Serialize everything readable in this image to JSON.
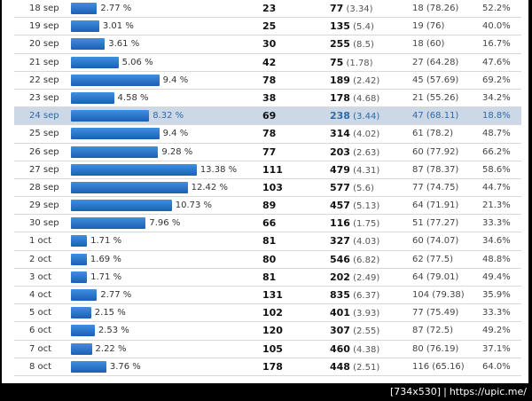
{
  "rows": [
    {
      "date": "18 sep",
      "pct": "2.77 %",
      "pctValue": 2.77,
      "c1": "23",
      "c2": "77",
      "c2sub": "(3.34)",
      "c3": "18 (78.26)",
      "c4": "52.2%",
      "highlight": false
    },
    {
      "date": "19 sep",
      "pct": "3.01 %",
      "pctValue": 3.01,
      "c1": "25",
      "c2": "135",
      "c2sub": "(5.4)",
      "c3": "19 (76)",
      "c4": "40.0%",
      "highlight": false
    },
    {
      "date": "20 sep",
      "pct": "3.61 %",
      "pctValue": 3.61,
      "c1": "30",
      "c2": "255",
      "c2sub": "(8.5)",
      "c3": "18 (60)",
      "c4": "16.7%",
      "highlight": false
    },
    {
      "date": "21 sep",
      "pct": "5.06 %",
      "pctValue": 5.06,
      "c1": "42",
      "c2": "75",
      "c2sub": "(1.78)",
      "c3": "27 (64.28)",
      "c4": "47.6%",
      "highlight": false
    },
    {
      "date": "22 sep",
      "pct": "9.4 %",
      "pctValue": 9.4,
      "c1": "78",
      "c2": "189",
      "c2sub": "(2.42)",
      "c3": "45 (57.69)",
      "c4": "69.2%",
      "highlight": false
    },
    {
      "date": "23 sep",
      "pct": "4.58 %",
      "pctValue": 4.58,
      "c1": "38",
      "c2": "178",
      "c2sub": "(4.68)",
      "c3": "21 (55.26)",
      "c4": "34.2%",
      "highlight": false
    },
    {
      "date": "24 sep",
      "pct": "8.32 %",
      "pctValue": 8.32,
      "c1": "69",
      "c2": "238",
      "c2sub": "(3.44)",
      "c3": "47 (68.11)",
      "c4": "18.8%",
      "highlight": true
    },
    {
      "date": "25 sep",
      "pct": "9.4 %",
      "pctValue": 9.4,
      "c1": "78",
      "c2": "314",
      "c2sub": "(4.02)",
      "c3": "61 (78.2)",
      "c4": "48.7%",
      "highlight": false
    },
    {
      "date": "26 sep",
      "pct": "9.28 %",
      "pctValue": 9.28,
      "c1": "77",
      "c2": "203",
      "c2sub": "(2.63)",
      "c3": "60 (77.92)",
      "c4": "66.2%",
      "highlight": false
    },
    {
      "date": "27 sep",
      "pct": "13.38 %",
      "pctValue": 13.38,
      "c1": "111",
      "c2": "479",
      "c2sub": "(4.31)",
      "c3": "87 (78.37)",
      "c4": "58.6%",
      "highlight": false
    },
    {
      "date": "28 sep",
      "pct": "12.42 %",
      "pctValue": 12.42,
      "c1": "103",
      "c2": "577",
      "c2sub": "(5.6)",
      "c3": "77 (74.75)",
      "c4": "44.7%",
      "highlight": false
    },
    {
      "date": "29 sep",
      "pct": "10.73 %",
      "pctValue": 10.73,
      "c1": "89",
      "c2": "457",
      "c2sub": "(5.13)",
      "c3": "64 (71.91)",
      "c4": "21.3%",
      "highlight": false
    },
    {
      "date": "30 sep",
      "pct": "7.96 %",
      "pctValue": 7.96,
      "c1": "66",
      "c2": "116",
      "c2sub": "(1.75)",
      "c3": "51 (77.27)",
      "c4": "33.3%",
      "highlight": false
    },
    {
      "date": "1 oct",
      "pct": "1.71 %",
      "pctValue": 1.71,
      "c1": "81",
      "c2": "327",
      "c2sub": "(4.03)",
      "c3": "60 (74.07)",
      "c4": "34.6%",
      "highlight": false
    },
    {
      "date": "2 oct",
      "pct": "1.69 %",
      "pctValue": 1.69,
      "c1": "80",
      "c2": "546",
      "c2sub": "(6.82)",
      "c3": "62 (77.5)",
      "c4": "48.8%",
      "highlight": false
    },
    {
      "date": "3 oct",
      "pct": "1.71 %",
      "pctValue": 1.71,
      "c1": "81",
      "c2": "202",
      "c2sub": "(2.49)",
      "c3": "64 (79.01)",
      "c4": "49.4%",
      "highlight": false
    },
    {
      "date": "4 oct",
      "pct": "2.77 %",
      "pctValue": 2.77,
      "c1": "131",
      "c2": "835",
      "c2sub": "(6.37)",
      "c3": "104 (79.38)",
      "c4": "35.9%",
      "highlight": false
    },
    {
      "date": "5 oct",
      "pct": "2.15 %",
      "pctValue": 2.15,
      "c1": "102",
      "c2": "401",
      "c2sub": "(3.93)",
      "c3": "77 (75.49)",
      "c4": "33.3%",
      "highlight": false
    },
    {
      "date": "6 oct",
      "pct": "2.53 %",
      "pctValue": 2.53,
      "c1": "120",
      "c2": "307",
      "c2sub": "(2.55)",
      "c3": "87 (72.5)",
      "c4": "49.2%",
      "highlight": false
    },
    {
      "date": "7 oct",
      "pct": "2.22 %",
      "pctValue": 2.22,
      "c1": "105",
      "c2": "460",
      "c2sub": "(4.38)",
      "c3": "80 (76.19)",
      "c4": "37.1%",
      "highlight": false
    },
    {
      "date": "8 oct",
      "pct": "3.76 %",
      "pctValue": 3.76,
      "c1": "178",
      "c2": "448",
      "c2sub": "(2.51)",
      "c3": "116 (65.16)",
      "c4": "64.0%",
      "highlight": false
    }
  ],
  "watermark": {
    "size": "[734x530]",
    "url": "https://upic.me/"
  }
}
